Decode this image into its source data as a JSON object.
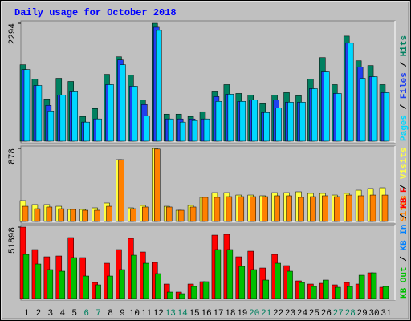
{
  "title": "Daily usage for October 2018",
  "chart_data": [
    {
      "type": "bar",
      "ylim": [
        0,
        2294
      ],
      "yticks": [
        2294
      ],
      "series": [
        {
          "name": "Hits",
          "color": "#008060",
          "values": [
            1488,
            1209,
            822,
            1225,
            1163,
            481,
            636,
            1302,
            1643,
            1287,
            806,
            2294,
            527,
            527,
            481,
            574,
            961,
            1101,
            930,
            899,
            744,
            899,
            946,
            884,
            1209,
            1628,
            1101,
            2046,
            1566,
            1473,
            1101
          ]
        },
        {
          "name": "Files",
          "color": "#2040f0",
          "values": [
            1395,
            1085,
            698,
            899,
            961,
            372,
            434,
            1101,
            1581,
            1070,
            713,
            2217,
            434,
            434,
            434,
            434,
            868,
            915,
            775,
            806,
            558,
            806,
            760,
            760,
            1023,
            1349,
            930,
            1907,
            1442,
            1256,
            946
          ]
        },
        {
          "name": "Pages",
          "color": "#00d8ff",
          "values": [
            1395,
            1085,
            589,
            899,
            961,
            372,
            434,
            1101,
            1488,
            1070,
            496,
            2155,
            434,
            372,
            403,
            434,
            775,
            915,
            775,
            806,
            558,
            651,
            760,
            760,
            1023,
            1349,
            930,
            1907,
            1225,
            1256,
            946
          ]
        }
      ]
    },
    {
      "type": "bar",
      "ylim": [
        0,
        878
      ],
      "yticks": [
        878
      ],
      "series": [
        {
          "name": "Visits",
          "color": "#ffff40",
          "values": [
            251,
            203,
            203,
            183,
            145,
            145,
            164,
            222,
            743,
            164,
            193,
            878,
            183,
            135,
            193,
            290,
            347,
            347,
            318,
            318,
            309,
            347,
            347,
            357,
            338,
            338,
            318,
            338,
            376,
            396,
            405
          ]
        },
        {
          "name": "Sites",
          "color": "#ff8000",
          "values": [
            183,
            154,
            174,
            154,
            145,
            135,
            135,
            183,
            743,
            154,
            174,
            870,
            174,
            135,
            174,
            290,
            290,
            299,
            299,
            299,
            299,
            309,
            309,
            290,
            299,
            309,
            299,
            318,
            309,
            318,
            318
          ]
        }
      ]
    },
    {
      "type": "bar",
      "ylim": [
        0,
        51898
      ],
      "yticks": [
        51898
      ],
      "categories": [
        "1",
        "2",
        "3",
        "4",
        "5",
        "6",
        "7",
        "8",
        "9",
        "10",
        "11",
        "12",
        "13",
        "14",
        "15",
        "16",
        "17",
        "18",
        "19",
        "20",
        "21",
        "22",
        "23",
        "24",
        "25",
        "26",
        "27",
        "28",
        "29",
        "30",
        "31"
      ],
      "category_colors": [
        "#000000",
        "#000000",
        "#000000",
        "#000000",
        "#000000",
        "#008060",
        "#008060",
        "#000000",
        "#000000",
        "#000000",
        "#000000",
        "#000000",
        "#008060",
        "#008060",
        "#000000",
        "#000000",
        "#000000",
        "#000000",
        "#000000",
        "#008060",
        "#008060",
        "#000000",
        "#000000",
        "#000000",
        "#000000",
        "#000000",
        "#008060",
        "#008060",
        "#000000",
        "#000000",
        "#000000"
      ],
      "series": [
        {
          "name": "KB F",
          "color": "#ff0000",
          "values": [
            51898,
            35563,
            30316,
            30899,
            44308,
            29733,
            11660,
            25652,
            35563,
            43725,
            33814,
            26235,
            10494,
            4664,
            10494,
            12243,
            46057,
            46640,
            30316,
            34397,
            22154,
            32065,
            23903,
            12826,
            10494,
            11077,
            9911,
            11660,
            10494,
            18656,
            8162
          ]
        },
        {
          "name": "KB In",
          "color": "#0080ff",
          "values": [
            0,
            0,
            0,
            0,
            0,
            0,
            0,
            0,
            0,
            0,
            0,
            0,
            0,
            0,
            0,
            0,
            0,
            0,
            0,
            0,
            0,
            0,
            0,
            0,
            0,
            0,
            0,
            0,
            0,
            0,
            0
          ]
        },
        {
          "name": "KB Out",
          "color": "#00c000",
          "values": [
            32065,
            25069,
            20988,
            19822,
            29733,
            16324,
            9911,
            16324,
            20988,
            31482,
            25652,
            18073,
            4664,
            3498,
            8745,
            12243,
            35563,
            35563,
            23320,
            20988,
            13409,
            25652,
            19822,
            11660,
            8745,
            13409,
            8162,
            8745,
            16907,
            18656,
            8745
          ]
        }
      ]
    }
  ]
}
